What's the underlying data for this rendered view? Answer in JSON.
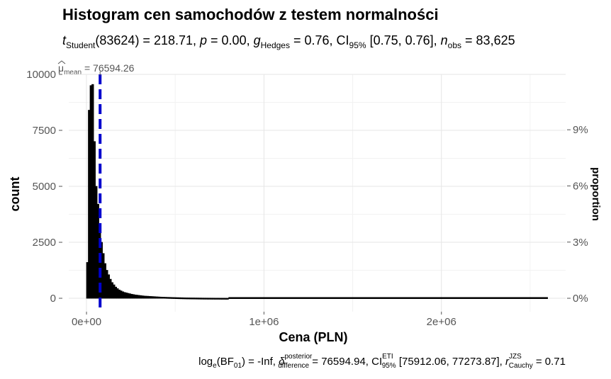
{
  "chart_data": {
    "type": "bar",
    "title": "Histogram cen samochodów z testem normalności",
    "subtitle": {
      "t_label": "t",
      "t_sub": "Student",
      "t_rest": "(83624) = 218.71, ",
      "p_label": "p",
      "p_rest": " = 0.00, ",
      "g_label": "g",
      "g_sub": "Hedges",
      "g_rest": " = 0.76, CI",
      "ci_sub": "95%",
      "ci_rest": " [0.75, 0.76], ",
      "n_label": "n",
      "n_sub": "obs",
      "n_rest": " = 83,625"
    },
    "xlabel": "Cena (PLN)",
    "ylabel": "count",
    "ylabel_right": "proportion",
    "xlim": [
      -100000,
      2700000
    ],
    "ylim": [
      -600,
      10000
    ],
    "x_ticks": [
      0,
      1000000,
      2000000
    ],
    "x_tick_labels": [
      "0e+00",
      "1e+06",
      "2e+06"
    ],
    "y_ticks": [
      0,
      2500,
      5000,
      7500,
      10000
    ],
    "y_tick_labels": [
      "0",
      "2500",
      "5000",
      "7500",
      "10000"
    ],
    "y2_ticks": [
      0,
      0.03,
      0.06,
      0.09
    ],
    "y2_tick_labels": [
      "0%",
      "3%",
      "6%",
      "9%"
    ],
    "n_obs": 83625,
    "mean": 76594.26,
    "mean_label": {
      "mu": "μ",
      "sub": "mean",
      "rest": " = 76594.26"
    },
    "mean_line_color": "#0000cd",
    "bar_fill": "#000000",
    "bin_width": 10000,
    "bins": [
      {
        "x": 5000,
        "y": 1600
      },
      {
        "x": 15000,
        "y": 8400
      },
      {
        "x": 25000,
        "y": 9500
      },
      {
        "x": 35000,
        "y": 9550
      },
      {
        "x": 45000,
        "y": 7000
      },
      {
        "x": 55000,
        "y": 5000
      },
      {
        "x": 65000,
        "y": 4200
      },
      {
        "x": 75000,
        "y": 3300
      },
      {
        "x": 85000,
        "y": 2500
      },
      {
        "x": 95000,
        "y": 2000
      },
      {
        "x": 105000,
        "y": 1550
      },
      {
        "x": 115000,
        "y": 1250
      },
      {
        "x": 125000,
        "y": 1050
      },
      {
        "x": 135000,
        "y": 850
      },
      {
        "x": 145000,
        "y": 700
      },
      {
        "x": 155000,
        "y": 600
      },
      {
        "x": 165000,
        "y": 500
      },
      {
        "x": 175000,
        "y": 430
      },
      {
        "x": 185000,
        "y": 370
      },
      {
        "x": 195000,
        "y": 330
      },
      {
        "x": 205000,
        "y": 290
      },
      {
        "x": 215000,
        "y": 260
      },
      {
        "x": 225000,
        "y": 240
      },
      {
        "x": 235000,
        "y": 220
      },
      {
        "x": 245000,
        "y": 200
      },
      {
        "x": 255000,
        "y": 180
      },
      {
        "x": 265000,
        "y": 165
      },
      {
        "x": 275000,
        "y": 150
      },
      {
        "x": 285000,
        "y": 140
      },
      {
        "x": 295000,
        "y": 130
      },
      {
        "x": 305000,
        "y": 120
      },
      {
        "x": 315000,
        "y": 110
      },
      {
        "x": 325000,
        "y": 100
      },
      {
        "x": 335000,
        "y": 95
      },
      {
        "x": 345000,
        "y": 90
      },
      {
        "x": 355000,
        "y": 85
      },
      {
        "x": 365000,
        "y": 80
      },
      {
        "x": 375000,
        "y": 75
      },
      {
        "x": 385000,
        "y": 70
      },
      {
        "x": 395000,
        "y": 65
      },
      {
        "x": 405000,
        "y": 60
      },
      {
        "x": 415000,
        "y": 55
      },
      {
        "x": 425000,
        "y": 50
      },
      {
        "x": 435000,
        "y": 48
      },
      {
        "x": 445000,
        "y": 45
      },
      {
        "x": 455000,
        "y": 42
      },
      {
        "x": 465000,
        "y": 40
      },
      {
        "x": 475000,
        "y": 38
      },
      {
        "x": 485000,
        "y": 35
      },
      {
        "x": 495000,
        "y": 33
      },
      {
        "x": 505000,
        "y": 30
      },
      {
        "x": 515000,
        "y": 28
      },
      {
        "x": 525000,
        "y": 26
      },
      {
        "x": 535000,
        "y": 24
      },
      {
        "x": 545000,
        "y": 22
      },
      {
        "x": 555000,
        "y": 20
      },
      {
        "x": 565000,
        "y": 18
      },
      {
        "x": 575000,
        "y": 17
      },
      {
        "x": 585000,
        "y": 16
      },
      {
        "x": 595000,
        "y": 15
      },
      {
        "x": 605000,
        "y": 14
      },
      {
        "x": 615000,
        "y": 13
      },
      {
        "x": 625000,
        "y": 12
      },
      {
        "x": 635000,
        "y": 11
      },
      {
        "x": 645000,
        "y": 10
      },
      {
        "x": 655000,
        "y": 9
      },
      {
        "x": 665000,
        "y": 8
      },
      {
        "x": 675000,
        "y": 8
      },
      {
        "x": 685000,
        "y": 7
      },
      {
        "x": 695000,
        "y": 7
      },
      {
        "x": 705000,
        "y": 6
      },
      {
        "x": 715000,
        "y": 6
      },
      {
        "x": 725000,
        "y": 5
      },
      {
        "x": 735000,
        "y": 5
      },
      {
        "x": 745000,
        "y": 5
      },
      {
        "x": 755000,
        "y": 4
      },
      {
        "x": 765000,
        "y": 4
      },
      {
        "x": 775000,
        "y": 4
      },
      {
        "x": 785000,
        "y": 3
      },
      {
        "x": 795000,
        "y": 3
      }
    ],
    "tail_line": {
      "x_start": 800000,
      "x_end": 2600000,
      "y": 2
    },
    "caption": {
      "log_label": "log",
      "log_sub": "e",
      "bf_label": "(BF",
      "bf_sub": "01",
      "bf_rest": ") = -Inf, ",
      "delta": "δ",
      "delta_sup": "posterior",
      "delta_sub": "difference",
      "delta_rest": " = 76594.94, CI",
      "ci_sup": "ETI",
      "ci_sub": "95%",
      "ci_rest": " [75912.06, 77273.87], ",
      "r_label": "r",
      "r_sup": "JZS",
      "r_sub": "Cauchy",
      "r_rest": " = 0.71"
    }
  }
}
